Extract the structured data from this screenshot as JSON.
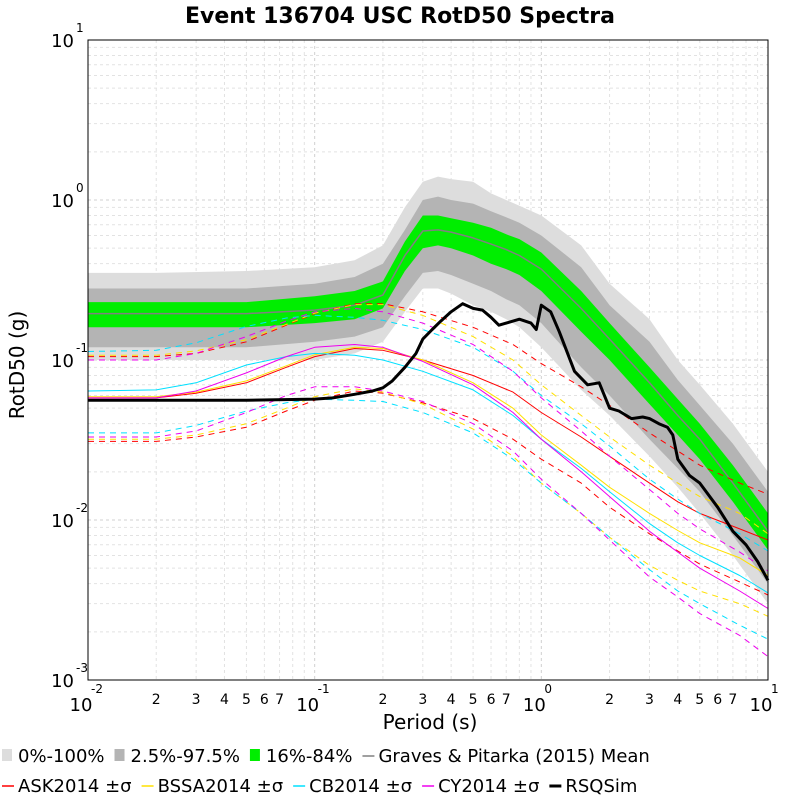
{
  "chart_data": {
    "type": "line",
    "title": "Event 136704 USC RotD50 Spectra",
    "xlabel": "Period (s)",
    "ylabel": "RotD50 (g)",
    "xscale": "log",
    "yscale": "log",
    "xlim": [
      0.01,
      10
    ],
    "ylim": [
      0.001,
      10
    ],
    "grid": true,
    "legend_placement": "bottom",
    "x_major_ticks": [
      {
        "base": "10",
        "exp": "-2"
      },
      {
        "base": "10",
        "exp": "-1"
      },
      {
        "base": "10",
        "exp": "0"
      },
      {
        "base": "10",
        "exp": "1"
      }
    ],
    "y_major_ticks": [
      {
        "base": "10",
        "exp": "-3"
      },
      {
        "base": "10",
        "exp": "-2"
      },
      {
        "base": "10",
        "exp": "-1"
      },
      {
        "base": "10",
        "exp": "0"
      },
      {
        "base": "10",
        "exp": "1"
      }
    ],
    "x_minor_tick_labels": [
      "2",
      "3",
      "4",
      "5",
      "6",
      "7"
    ],
    "bands": [
      {
        "name": "0%-100%",
        "color": "#dddddd",
        "x": [
          0.01,
          0.02,
          0.05,
          0.1,
          0.15,
          0.2,
          0.25,
          0.3,
          0.35,
          0.4,
          0.5,
          0.6,
          0.7,
          0.8,
          1.0,
          1.5,
          2.0,
          3.0,
          4.0,
          5.0,
          7.0,
          10.0
        ],
        "lower": [
          0.1,
          0.1,
          0.1,
          0.1,
          0.11,
          0.13,
          0.2,
          0.28,
          0.28,
          0.26,
          0.22,
          0.2,
          0.18,
          0.16,
          0.12,
          0.065,
          0.045,
          0.025,
          0.016,
          0.011,
          0.006,
          0.003
        ],
        "upper": [
          0.35,
          0.35,
          0.36,
          0.38,
          0.42,
          0.52,
          0.9,
          1.3,
          1.4,
          1.35,
          1.3,
          1.1,
          1.0,
          0.92,
          0.8,
          0.52,
          0.3,
          0.18,
          0.1,
          0.07,
          0.04,
          0.02
        ]
      },
      {
        "name": "2.5%-97.5%",
        "color": "#b4b4b4",
        "x": [
          0.01,
          0.02,
          0.05,
          0.1,
          0.15,
          0.2,
          0.25,
          0.3,
          0.35,
          0.4,
          0.5,
          0.6,
          0.7,
          0.8,
          1.0,
          1.5,
          2.0,
          3.0,
          4.0,
          5.0,
          7.0,
          10.0
        ],
        "lower": [
          0.12,
          0.12,
          0.12,
          0.13,
          0.14,
          0.16,
          0.25,
          0.35,
          0.36,
          0.34,
          0.3,
          0.27,
          0.24,
          0.22,
          0.17,
          0.09,
          0.06,
          0.032,
          0.021,
          0.015,
          0.008,
          0.004
        ],
        "upper": [
          0.28,
          0.28,
          0.28,
          0.3,
          0.33,
          0.4,
          0.65,
          1.0,
          1.05,
          1.0,
          0.95,
          0.85,
          0.78,
          0.72,
          0.6,
          0.38,
          0.22,
          0.13,
          0.075,
          0.052,
          0.03,
          0.015
        ]
      },
      {
        "name": "16%-84%",
        "color": "#00ee00",
        "x": [
          0.01,
          0.02,
          0.05,
          0.1,
          0.15,
          0.2,
          0.25,
          0.3,
          0.35,
          0.4,
          0.5,
          0.6,
          0.7,
          0.8,
          1.0,
          1.5,
          2.0,
          3.0,
          4.0,
          5.0,
          7.0,
          10.0
        ],
        "lower": [
          0.16,
          0.16,
          0.16,
          0.17,
          0.18,
          0.21,
          0.36,
          0.5,
          0.52,
          0.5,
          0.45,
          0.4,
          0.37,
          0.34,
          0.27,
          0.15,
          0.1,
          0.053,
          0.034,
          0.024,
          0.013,
          0.0065
        ],
        "upper": [
          0.23,
          0.23,
          0.23,
          0.25,
          0.27,
          0.31,
          0.55,
          0.8,
          0.8,
          0.77,
          0.72,
          0.67,
          0.61,
          0.57,
          0.47,
          0.27,
          0.17,
          0.09,
          0.057,
          0.04,
          0.022,
          0.011
        ]
      }
    ],
    "series": [
      {
        "name": "Graves & Pitarka (2015) Mean",
        "color": "#808080",
        "style": "solid",
        "x": [
          0.01,
          0.02,
          0.05,
          0.1,
          0.15,
          0.2,
          0.25,
          0.3,
          0.35,
          0.4,
          0.5,
          0.6,
          0.7,
          0.8,
          1.0,
          1.5,
          2.0,
          3.0,
          4.0,
          5.0,
          7.0,
          10.0
        ],
        "y": [
          0.195,
          0.195,
          0.195,
          0.205,
          0.22,
          0.255,
          0.45,
          0.64,
          0.65,
          0.63,
          0.58,
          0.53,
          0.49,
          0.45,
          0.37,
          0.21,
          0.135,
          0.072,
          0.045,
          0.032,
          0.017,
          0.0085
        ]
      },
      {
        "name": "ASK2014",
        "color": "#ff0000",
        "style": "solid",
        "x": [
          0.01,
          0.02,
          0.03,
          0.05,
          0.075,
          0.1,
          0.15,
          0.2,
          0.3,
          0.5,
          0.75,
          1.0,
          1.5,
          2.0,
          3.0,
          4.0,
          5.0,
          7.5,
          10.0
        ],
        "y": [
          0.058,
          0.058,
          0.062,
          0.072,
          0.09,
          0.105,
          0.118,
          0.115,
          0.1,
          0.08,
          0.063,
          0.047,
          0.033,
          0.025,
          0.017,
          0.013,
          0.011,
          0.0088,
          0.0075
        ]
      },
      {
        "name": "ASK2014 +σ",
        "color": "#ff0000",
        "style": "dashed",
        "x": [
          0.01,
          0.02,
          0.03,
          0.05,
          0.075,
          0.1,
          0.15,
          0.2,
          0.3,
          0.5,
          0.75,
          1.0,
          1.5,
          2.0,
          3.0,
          4.0,
          5.0,
          7.5,
          10.0
        ],
        "y": [
          0.105,
          0.105,
          0.11,
          0.13,
          0.165,
          0.195,
          0.225,
          0.225,
          0.2,
          0.16,
          0.125,
          0.095,
          0.068,
          0.052,
          0.035,
          0.027,
          0.022,
          0.017,
          0.0145
        ]
      },
      {
        "name": "ASK2014 -σ",
        "color": "#ff0000",
        "style": "dashed",
        "x": [
          0.01,
          0.02,
          0.03,
          0.05,
          0.075,
          0.1,
          0.15,
          0.2,
          0.3,
          0.5,
          0.75,
          1.0,
          1.5,
          2.0,
          3.0,
          4.0,
          5.0,
          7.5,
          10.0
        ],
        "y": [
          0.031,
          0.031,
          0.033,
          0.038,
          0.048,
          0.056,
          0.064,
          0.062,
          0.054,
          0.043,
          0.032,
          0.024,
          0.017,
          0.012,
          0.0082,
          0.0064,
          0.0053,
          0.0041,
          0.0034
        ]
      },
      {
        "name": "BSSA2014",
        "color": "#ffe000",
        "style": "solid",
        "x": [
          0.01,
          0.02,
          0.03,
          0.05,
          0.075,
          0.1,
          0.15,
          0.2,
          0.3,
          0.5,
          0.75,
          1.0,
          1.5,
          2.0,
          3.0,
          4.0,
          5.0,
          7.5,
          10.0
        ],
        "y": [
          0.059,
          0.059,
          0.063,
          0.074,
          0.092,
          0.108,
          0.12,
          0.118,
          0.1,
          0.072,
          0.05,
          0.034,
          0.022,
          0.016,
          0.011,
          0.0086,
          0.0072,
          0.0058,
          0.0045
        ]
      },
      {
        "name": "BSSA2014 +σ",
        "color": "#ffe000",
        "style": "dashed",
        "x": [
          0.01,
          0.02,
          0.03,
          0.05,
          0.075,
          0.1,
          0.15,
          0.2,
          0.3,
          0.5,
          0.75,
          1.0,
          1.5,
          2.0,
          3.0,
          4.0,
          5.0,
          7.5,
          10.0
        ],
        "y": [
          0.107,
          0.107,
          0.114,
          0.134,
          0.167,
          0.196,
          0.222,
          0.222,
          0.19,
          0.14,
          0.1,
          0.07,
          0.045,
          0.033,
          0.022,
          0.017,
          0.014,
          0.011,
          0.0082
        ]
      },
      {
        "name": "BSSA2014 -σ",
        "color": "#ffe000",
        "style": "dashed",
        "x": [
          0.01,
          0.02,
          0.03,
          0.05,
          0.075,
          0.1,
          0.15,
          0.2,
          0.3,
          0.5,
          0.75,
          1.0,
          1.5,
          2.0,
          3.0,
          4.0,
          5.0,
          7.5,
          10.0
        ],
        "y": [
          0.032,
          0.032,
          0.034,
          0.04,
          0.05,
          0.059,
          0.066,
          0.063,
          0.053,
          0.037,
          0.025,
          0.017,
          0.011,
          0.0078,
          0.0052,
          0.0042,
          0.0036,
          0.003,
          0.0025
        ]
      },
      {
        "name": "CB2014",
        "color": "#00e0ff",
        "style": "solid",
        "x": [
          0.01,
          0.02,
          0.03,
          0.05,
          0.075,
          0.1,
          0.15,
          0.2,
          0.3,
          0.5,
          0.75,
          1.0,
          1.5,
          2.0,
          3.0,
          4.0,
          5.0,
          7.5,
          10.0
        ],
        "y": [
          0.064,
          0.065,
          0.072,
          0.093,
          0.105,
          0.11,
          0.107,
          0.1,
          0.085,
          0.065,
          0.045,
          0.032,
          0.021,
          0.015,
          0.0095,
          0.0072,
          0.006,
          0.0045,
          0.0035
        ]
      },
      {
        "name": "CB2014 +σ",
        "color": "#00e0ff",
        "style": "dashed",
        "x": [
          0.01,
          0.02,
          0.03,
          0.05,
          0.075,
          0.1,
          0.15,
          0.2,
          0.3,
          0.5,
          0.75,
          1.0,
          1.5,
          2.0,
          3.0,
          4.0,
          5.0,
          7.5,
          10.0
        ],
        "y": [
          0.113,
          0.115,
          0.128,
          0.162,
          0.183,
          0.19,
          0.185,
          0.177,
          0.155,
          0.12,
          0.085,
          0.06,
          0.04,
          0.029,
          0.018,
          0.0135,
          0.011,
          0.0082,
          0.0064
        ]
      },
      {
        "name": "CB2014 -σ",
        "color": "#00e0ff",
        "style": "dashed",
        "x": [
          0.01,
          0.02,
          0.03,
          0.05,
          0.075,
          0.1,
          0.15,
          0.2,
          0.3,
          0.5,
          0.75,
          1.0,
          1.5,
          2.0,
          3.0,
          4.0,
          5.0,
          7.5,
          10.0
        ],
        "y": [
          0.035,
          0.035,
          0.039,
          0.048,
          0.054,
          0.057,
          0.056,
          0.055,
          0.047,
          0.035,
          0.024,
          0.017,
          0.011,
          0.0078,
          0.0049,
          0.0036,
          0.003,
          0.0022,
          0.0018
        ]
      },
      {
        "name": "CY2014",
        "color": "#ee00ee",
        "style": "solid",
        "x": [
          0.01,
          0.02,
          0.03,
          0.05,
          0.075,
          0.1,
          0.15,
          0.2,
          0.3,
          0.5,
          0.75,
          1.0,
          1.5,
          2.0,
          3.0,
          4.0,
          5.0,
          7.5,
          10.0
        ],
        "y": [
          0.058,
          0.058,
          0.064,
          0.083,
          0.105,
          0.12,
          0.125,
          0.12,
          0.098,
          0.07,
          0.047,
          0.032,
          0.02,
          0.014,
          0.0085,
          0.0063,
          0.005,
          0.0036,
          0.0028
        ]
      },
      {
        "name": "CY2014 +σ",
        "color": "#ee00ee",
        "style": "dashed",
        "x": [
          0.01,
          0.02,
          0.03,
          0.05,
          0.075,
          0.1,
          0.15,
          0.2,
          0.3,
          0.5,
          0.75,
          1.0,
          1.5,
          2.0,
          3.0,
          4.0,
          5.0,
          7.5,
          10.0
        ],
        "y": [
          0.1,
          0.1,
          0.11,
          0.14,
          0.175,
          0.2,
          0.21,
          0.2,
          0.17,
          0.125,
          0.085,
          0.058,
          0.036,
          0.025,
          0.0155,
          0.011,
          0.0088,
          0.0063,
          0.0048
        ]
      },
      {
        "name": "CY2014 -σ",
        "color": "#ee00ee",
        "style": "dashed",
        "x": [
          0.01,
          0.02,
          0.03,
          0.05,
          0.075,
          0.1,
          0.15,
          0.2,
          0.3,
          0.5,
          0.75,
          1.0,
          1.5,
          2.0,
          3.0,
          4.0,
          5.0,
          7.5,
          10.0
        ],
        "y": [
          0.033,
          0.033,
          0.036,
          0.047,
          0.06,
          0.068,
          0.068,
          0.064,
          0.055,
          0.04,
          0.027,
          0.018,
          0.011,
          0.0075,
          0.0044,
          0.0033,
          0.0026,
          0.0019,
          0.0014
        ]
      },
      {
        "name": "RSQSim",
        "color": "#000000",
        "style": "solid",
        "bold": true,
        "x": [
          0.01,
          0.02,
          0.05,
          0.1,
          0.12,
          0.15,
          0.18,
          0.2,
          0.22,
          0.25,
          0.28,
          0.3,
          0.33,
          0.36,
          0.4,
          0.45,
          0.5,
          0.55,
          0.6,
          0.65,
          0.7,
          0.8,
          0.9,
          0.95,
          1.0,
          1.1,
          1.2,
          1.4,
          1.6,
          1.8,
          2.0,
          2.2,
          2.5,
          2.8,
          3.0,
          3.3,
          3.6,
          3.8,
          4.0,
          4.5,
          5.0,
          6.0,
          7.0,
          8.0,
          9.0,
          10.0
        ],
        "y": [
          0.056,
          0.056,
          0.056,
          0.057,
          0.058,
          0.061,
          0.064,
          0.067,
          0.074,
          0.09,
          0.11,
          0.135,
          0.155,
          0.175,
          0.2,
          0.225,
          0.21,
          0.205,
          0.185,
          0.165,
          0.17,
          0.18,
          0.17,
          0.155,
          0.22,
          0.2,
          0.15,
          0.085,
          0.07,
          0.072,
          0.05,
          0.048,
          0.043,
          0.044,
          0.043,
          0.04,
          0.038,
          0.034,
          0.024,
          0.019,
          0.017,
          0.012,
          0.0085,
          0.007,
          0.0055,
          0.0042
        ]
      }
    ],
    "legend": [
      {
        "label": "0%-100%",
        "kind": "patch",
        "color": "#dddddd"
      },
      {
        "label": "2.5%-97.5%",
        "kind": "patch",
        "color": "#b4b4b4"
      },
      {
        "label": "16%-84%",
        "kind": "patch",
        "color": "#00ee00"
      },
      {
        "label": "Graves & Pitarka (2015) Mean",
        "kind": "line",
        "color": "#808080"
      },
      {
        "label": "ASK2014 ±σ",
        "kind": "line",
        "color": "#ff0000"
      },
      {
        "label": "BSSA2014 ±σ",
        "kind": "line",
        "color": "#ffe000"
      },
      {
        "label": "CB2014 ±σ",
        "kind": "line",
        "color": "#00e0ff"
      },
      {
        "label": "CY2014 ±σ",
        "kind": "line",
        "color": "#ee00ee"
      },
      {
        "label": "RSQSim",
        "kind": "line-bold",
        "color": "#000000"
      }
    ]
  }
}
